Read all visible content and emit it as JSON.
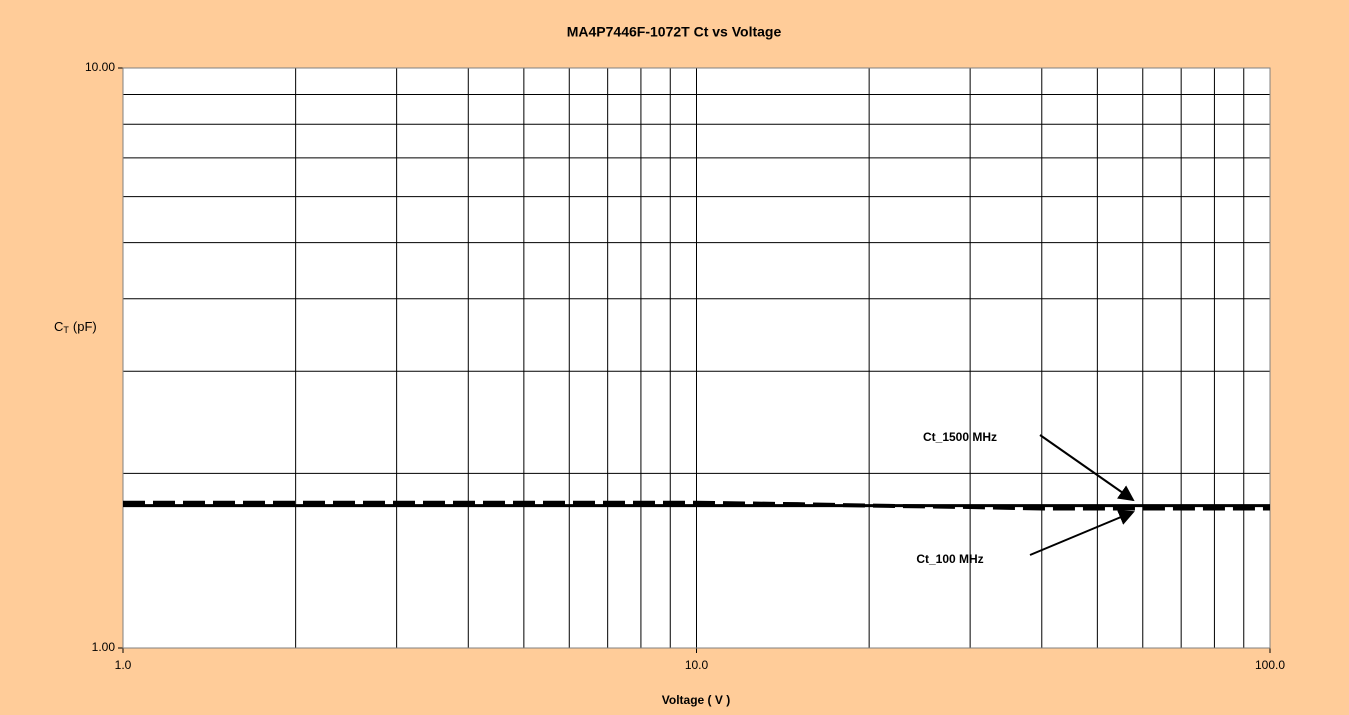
{
  "chart_data": {
    "type": "line",
    "title": "MA4P7446F-1072T Ct vs Voltage",
    "xlabel": "Voltage ( V )",
    "ylabel": {
      "main": "C",
      "sub": "T",
      "unit": "(pF)"
    },
    "xscale": "log",
    "yscale": "log",
    "xlim": [
      1,
      100
    ],
    "ylim": [
      1,
      10
    ],
    "xticks": [
      {
        "value": 1,
        "label": "1.0"
      },
      {
        "value": 10,
        "label": "10.0"
      },
      {
        "value": 100,
        "label": "100.0"
      }
    ],
    "yticks": [
      {
        "value": 1,
        "label": "1.00"
      },
      {
        "value": 10,
        "label": "10.00"
      }
    ],
    "x_minor_grid": [
      2,
      3,
      4,
      5,
      6,
      7,
      8,
      9,
      20,
      30,
      40,
      50,
      60,
      70,
      80,
      90
    ],
    "y_minor_grid": [
      2,
      3,
      4,
      5,
      6,
      7,
      8,
      9
    ],
    "grid": true,
    "x": [
      1,
      2,
      3,
      4,
      5,
      6,
      7,
      8,
      9,
      10,
      15,
      20,
      30,
      40,
      50,
      60,
      70,
      80,
      90,
      100
    ],
    "series": [
      {
        "name": "Ct_1500 MHz",
        "color": "#000000",
        "dash": "solid",
        "values": [
          1.76,
          1.76,
          1.76,
          1.76,
          1.76,
          1.76,
          1.76,
          1.76,
          1.76,
          1.76,
          1.76,
          1.76,
          1.76,
          1.76,
          1.76,
          1.76,
          1.76,
          1.76,
          1.76,
          1.76
        ]
      },
      {
        "name": "Ct_100 MHz",
        "color": "#000000",
        "dash": "dashed",
        "values": [
          1.78,
          1.78,
          1.78,
          1.78,
          1.78,
          1.78,
          1.78,
          1.78,
          1.78,
          1.78,
          1.77,
          1.76,
          1.75,
          1.74,
          1.74,
          1.74,
          1.74,
          1.74,
          1.74,
          1.74
        ]
      }
    ]
  }
}
